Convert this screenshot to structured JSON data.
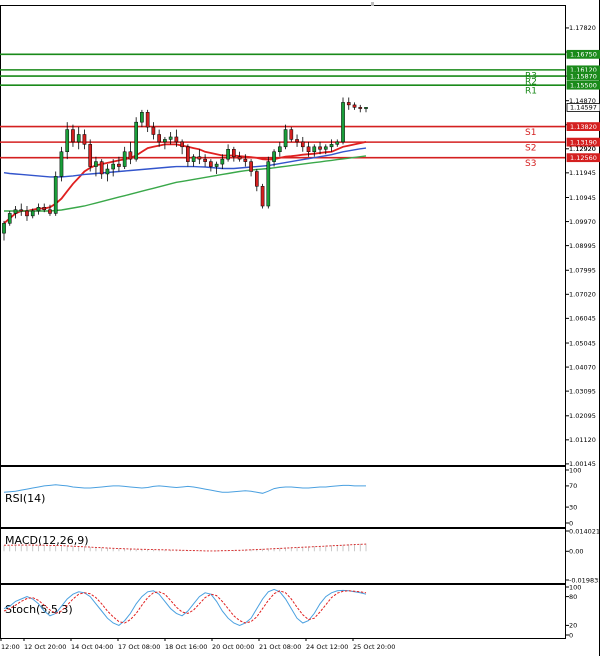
{
  "chart_data": [
    {
      "type": "candlestick",
      "pane": "price",
      "y_ticks": [
        "1.17820",
        "1.16845",
        "1.15870",
        "1.14870",
        "1.13895",
        "1.12920",
        "1.11945",
        "1.10945",
        "1.09970",
        "1.08995",
        "1.07995",
        "1.07020",
        "1.06045",
        "1.05045",
        "1.04070",
        "1.03095",
        "1.02095",
        "1.01120",
        "1.00145"
      ],
      "ylim": [
        1.001,
        1.1875
      ],
      "candles": [
        [
          1.095,
          1.1,
          1.092,
          1.099
        ],
        [
          1.099,
          1.104,
          1.098,
          1.103
        ],
        [
          1.103,
          1.106,
          1.101,
          1.1045
        ],
        [
          1.1045,
          1.107,
          1.102,
          1.104
        ],
        [
          1.104,
          1.106,
          1.1,
          1.102
        ],
        [
          1.102,
          1.105,
          1.101,
          1.104
        ],
        [
          1.104,
          1.107,
          1.1025,
          1.1055
        ],
        [
          1.1055,
          1.107,
          1.1035,
          1.1045
        ],
        [
          1.1045,
          1.1065,
          1.102,
          1.103
        ],
        [
          1.103,
          1.12,
          1.102,
          1.118
        ],
        [
          1.118,
          1.13,
          1.116,
          1.128
        ],
        [
          1.128,
          1.14,
          1.125,
          1.137
        ],
        [
          1.137,
          1.139,
          1.13,
          1.132
        ],
        [
          1.132,
          1.138,
          1.129,
          1.135
        ],
        [
          1.135,
          1.137,
          1.129,
          1.131
        ],
        [
          1.131,
          1.133,
          1.12,
          1.122
        ],
        [
          1.122,
          1.126,
          1.118,
          1.124
        ],
        [
          1.124,
          1.125,
          1.117,
          1.119
        ],
        [
          1.119,
          1.123,
          1.116,
          1.121
        ],
        [
          1.121,
          1.125,
          1.118,
          1.123
        ],
        [
          1.123,
          1.126,
          1.12,
          1.122
        ],
        [
          1.122,
          1.13,
          1.121,
          1.128
        ],
        [
          1.128,
          1.132,
          1.123,
          1.125
        ],
        [
          1.125,
          1.142,
          1.124,
          1.14
        ],
        [
          1.14,
          1.145,
          1.138,
          1.144
        ],
        [
          1.144,
          1.145,
          1.136,
          1.138
        ],
        [
          1.138,
          1.14,
          1.133,
          1.135
        ],
        [
          1.135,
          1.137,
          1.13,
          1.132
        ],
        [
          1.132,
          1.134,
          1.129,
          1.133
        ],
        [
          1.133,
          1.136,
          1.131,
          1.134
        ],
        [
          1.134,
          1.137,
          1.13,
          1.132
        ],
        [
          1.132,
          1.133,
          1.127,
          1.13
        ],
        [
          1.13,
          1.131,
          1.122,
          1.124
        ],
        [
          1.124,
          1.127,
          1.122,
          1.126
        ],
        [
          1.126,
          1.129,
          1.123,
          1.125
        ],
        [
          1.125,
          1.127,
          1.122,
          1.124
        ],
        [
          1.124,
          1.125,
          1.12,
          1.122
        ],
        [
          1.122,
          1.124,
          1.119,
          1.123
        ],
        [
          1.123,
          1.127,
          1.121,
          1.125
        ],
        [
          1.125,
          1.131,
          1.124,
          1.129
        ],
        [
          1.129,
          1.13,
          1.124,
          1.126
        ],
        [
          1.126,
          1.128,
          1.124,
          1.125
        ],
        [
          1.125,
          1.127,
          1.122,
          1.124
        ],
        [
          1.124,
          1.125,
          1.118,
          1.12
        ],
        [
          1.12,
          1.121,
          1.112,
          1.114
        ],
        [
          1.114,
          1.115,
          1.105,
          1.106
        ],
        [
          1.106,
          1.126,
          1.105,
          1.124
        ],
        [
          1.124,
          1.129,
          1.122,
          1.128
        ],
        [
          1.128,
          1.132,
          1.126,
          1.13
        ],
        [
          1.13,
          1.139,
          1.129,
          1.137
        ],
        [
          1.137,
          1.138,
          1.132,
          1.133
        ],
        [
          1.133,
          1.135,
          1.13,
          1.132
        ],
        [
          1.132,
          1.134,
          1.128,
          1.13
        ],
        [
          1.13,
          1.132,
          1.126,
          1.128
        ],
        [
          1.128,
          1.131,
          1.126,
          1.13
        ],
        [
          1.13,
          1.132,
          1.127,
          1.129
        ],
        [
          1.129,
          1.131,
          1.127,
          1.13
        ],
        [
          1.13,
          1.133,
          1.128,
          1.131
        ],
        [
          1.131,
          1.133,
          1.13,
          1.132
        ],
        [
          1.132,
          1.15,
          1.131,
          1.148
        ],
        [
          1.148,
          1.15,
          1.145,
          1.147
        ],
        [
          1.147,
          1.148,
          1.145,
          1.146
        ],
        [
          1.146,
          1.147,
          1.144,
          1.1455
        ],
        [
          1.1455,
          1.146,
          1.144,
          1.146
        ]
      ],
      "moving_averages": [
        {
          "color": "#e02020",
          "values": [
            1.099,
            1.101,
            1.103,
            1.104,
            1.104,
            1.1045,
            1.105,
            1.105,
            1.1055,
            1.107,
            1.109,
            1.112,
            1.115,
            1.1175,
            1.12,
            1.1215,
            1.1225,
            1.123,
            1.1235,
            1.124,
            1.1245,
            1.125,
            1.1255,
            1.1265,
            1.128,
            1.1295,
            1.13,
            1.1305,
            1.131,
            1.131,
            1.131,
            1.1305,
            1.13,
            1.1295,
            1.129,
            1.128,
            1.1275,
            1.127,
            1.1265,
            1.1265,
            1.1265,
            1.1262,
            1.126,
            1.1258,
            1.1255,
            1.125,
            1.1248,
            1.125,
            1.1255,
            1.126,
            1.1262,
            1.1265,
            1.1268,
            1.127,
            1.1272,
            1.1275,
            1.1278,
            1.128,
            1.129,
            1.13,
            1.1305,
            1.131,
            1.1315,
            1.132
          ]
        },
        {
          "color": "#3355cc",
          "values": [
            1.1195,
            1.1192,
            1.119,
            1.1188,
            1.1186,
            1.1184,
            1.1182,
            1.118,
            1.1178,
            1.1178,
            1.1178,
            1.118,
            1.1182,
            1.1185,
            1.1188,
            1.119,
            1.1192,
            1.1194,
            1.1196,
            1.1198,
            1.12,
            1.1202,
            1.1204,
            1.1206,
            1.1208,
            1.121,
            1.1212,
            1.1214,
            1.1216,
            1.1218,
            1.122,
            1.122,
            1.122,
            1.122,
            1.1219,
            1.1218,
            1.1216,
            1.1214,
            1.1212,
            1.1212,
            1.1212,
            1.1214,
            1.1216,
            1.1218,
            1.122,
            1.1222,
            1.1224,
            1.1228,
            1.1232,
            1.1236,
            1.124,
            1.1244,
            1.1248,
            1.1252,
            1.1256,
            1.126,
            1.1264,
            1.1268,
            1.1274,
            1.128,
            1.1284,
            1.1288,
            1.1292,
            1.1295
          ]
        },
        {
          "color": "#3aa84a",
          "values": [
            1.104,
            1.104,
            1.104,
            1.104,
            1.104,
            1.104,
            1.104,
            1.104,
            1.104,
            1.1042,
            1.1044,
            1.1048,
            1.1052,
            1.1056,
            1.106,
            1.1066,
            1.1072,
            1.1078,
            1.1084,
            1.109,
            1.1096,
            1.1102,
            1.1108,
            1.1114,
            1.112,
            1.1126,
            1.1132,
            1.1138,
            1.1144,
            1.115,
            1.1156,
            1.116,
            1.1164,
            1.1168,
            1.1172,
            1.1176,
            1.118,
            1.1184,
            1.1188,
            1.1192,
            1.1196,
            1.12,
            1.1203,
            1.1206,
            1.1208,
            1.121,
            1.1212,
            1.1215,
            1.1218,
            1.1221,
            1.1224,
            1.1227,
            1.123,
            1.1233,
            1.1236,
            1.1239,
            1.1242,
            1.1245,
            1.1248,
            1.1251,
            1.1254,
            1.1257,
            1.126,
            1.1263
          ]
        }
      ],
      "levels": [
        {
          "label": "",
          "value": "1.16750",
          "v": 1.1675,
          "color": "#1a8a1a"
        },
        {
          "label": "R3",
          "value": "1.16120",
          "v": 1.1612,
          "color": "#1a8a1a"
        },
        {
          "label": "R2",
          "value": "1.15870",
          "v": 1.1587,
          "color": "#1a8a1a"
        },
        {
          "label": "R1",
          "value": "1.15500",
          "v": 1.155,
          "color": "#1a8a1a"
        },
        {
          "label": "",
          "value": "1.14597",
          "v": 1.14597,
          "color": "#000000"
        },
        {
          "label": "S1",
          "value": "1.13820",
          "v": 1.1382,
          "color": "#d42020"
        },
        {
          "label": "S2",
          "value": "1.13190",
          "v": 1.1319,
          "color": "#d42020"
        },
        {
          "label": "S3",
          "value": "1.12560",
          "v": 1.1256,
          "color": "#d42020"
        }
      ],
      "level_extra_value": "1.12920"
    },
    {
      "type": "line",
      "pane": "rsi",
      "title": "RSI(14)",
      "y_ticks": [
        "100",
        "70",
        "30",
        "0"
      ],
      "ylim": [
        0,
        100
      ],
      "series": [
        {
          "color": "#4aa0e0",
          "values": [
            58,
            59,
            60,
            62,
            64,
            66,
            68,
            70,
            71,
            72,
            71,
            70,
            68,
            67,
            66,
            66,
            67,
            68,
            69,
            70,
            70,
            69,
            68,
            67,
            66,
            67,
            69,
            70,
            69,
            68,
            67,
            68,
            69,
            68,
            66,
            64,
            62,
            60,
            58,
            58,
            59,
            60,
            61,
            60,
            58,
            56,
            60,
            65,
            67,
            68,
            68,
            67,
            66,
            66,
            67,
            68,
            68,
            69,
            70,
            71,
            71,
            70,
            70,
            70
          ]
        }
      ]
    },
    {
      "type": "bar_line",
      "pane": "macd",
      "title": "MACD(12,26,9)",
      "y_ticks": [
        "0.014021",
        "0.00",
        "-0.019835"
      ],
      "ylim": [
        -0.019835,
        0.014021
      ],
      "histogram": [
        0.004,
        0.004,
        0.004,
        0.0041,
        0.0041,
        0.0042,
        0.0042,
        0.0042,
        0.0041,
        0.004,
        0.0039,
        0.0038,
        0.0036,
        0.0034,
        0.0032,
        0.003,
        0.0028,
        0.0026,
        0.0024,
        0.0022,
        0.002,
        0.0018,
        0.0016,
        0.0015,
        0.0014,
        0.0013,
        0.0012,
        0.0011,
        0.001,
        0.0009,
        0.0008,
        0.0007,
        0.0006,
        0.0005,
        0.0004,
        0.0004,
        0.0004,
        0.0005,
        0.0006,
        0.0007,
        0.0008,
        0.001,
        0.0012,
        0.0014,
        0.0016,
        0.0018,
        0.002,
        0.0022,
        0.0024,
        0.0026,
        0.0028,
        0.003,
        0.0032,
        0.0034,
        0.0036,
        0.0038,
        0.004,
        0.0042,
        0.0044,
        0.0046,
        0.0048,
        0.005,
        0.0052,
        0.0054
      ],
      "signal": {
        "color": "#d42020",
        "values": [
          0.0042,
          0.0042,
          0.0043,
          0.0043,
          0.0043,
          0.0043,
          0.0042,
          0.0042,
          0.0041,
          0.004,
          0.0039,
          0.0037,
          0.0035,
          0.0033,
          0.0031,
          0.0029,
          0.0027,
          0.0025,
          0.0023,
          0.0021,
          0.0019,
          0.0017,
          0.0016,
          0.0015,
          0.0014,
          0.0013,
          0.0012,
          0.0011,
          0.001,
          0.0009,
          0.0008,
          0.0007,
          0.0006,
          0.0005,
          0.0004,
          0.0003,
          0.0003,
          0.0003,
          0.0004,
          0.0005,
          0.0006,
          0.0007,
          0.0008,
          0.001,
          0.0012,
          0.0014,
          0.0016,
          0.0018,
          0.002,
          0.0022,
          0.0024,
          0.0026,
          0.0028,
          0.003,
          0.0032,
          0.0034,
          0.0036,
          0.0038,
          0.004,
          0.0042,
          0.0044,
          0.0046,
          0.0048,
          0.005
        ]
      }
    },
    {
      "type": "line",
      "pane": "stoch",
      "title": "Stoch(5,5,3)",
      "y_ticks": [
        "100",
        "80",
        "20",
        "0"
      ],
      "ylim": [
        0,
        100
      ],
      "series": [
        {
          "color": "#4aa0e0",
          "values": [
            55,
            60,
            70,
            75,
            80,
            75,
            65,
            50,
            40,
            45,
            60,
            75,
            85,
            90,
            88,
            80,
            65,
            50,
            35,
            25,
            20,
            30,
            45,
            65,
            80,
            90,
            92,
            85,
            70,
            55,
            45,
            40,
            50,
            65,
            80,
            88,
            85,
            70,
            50,
            35,
            25,
            20,
            25,
            35,
            55,
            75,
            90,
            95,
            90,
            75,
            55,
            35,
            25,
            30,
            45,
            65,
            80,
            88,
            92,
            93,
            92,
            90,
            88,
            85
          ]
        },
        {
          "color": "#e02020",
          "values": [
            50,
            55,
            62,
            70,
            76,
            78,
            72,
            62,
            52,
            45,
            50,
            62,
            75,
            85,
            88,
            86,
            78,
            65,
            50,
            38,
            28,
            25,
            32,
            45,
            62,
            78,
            88,
            90,
            85,
            72,
            58,
            48,
            45,
            52,
            65,
            78,
            85,
            82,
            70,
            55,
            40,
            30,
            25,
            28,
            38,
            55,
            72,
            86,
            92,
            88,
            75,
            58,
            42,
            32,
            35,
            48,
            63,
            78,
            87,
            91,
            92,
            91,
            90,
            88
          ]
        }
      ]
    }
  ],
  "x_labels": [
    "12:00",
    "12 Oct 20:00",
    "14 Oct 04:00",
    "17 Oct 08:00",
    "18 Oct 16:00",
    "20 Oct 00:00",
    "21 Oct 08:00",
    "24 Oct 12:00",
    "25 Oct 20:00"
  ],
  "colors": {
    "bg": "#ffffff",
    "axis": "#000000",
    "bull": "#1a9e3a",
    "bear": "#d42020",
    "grid": "#cccccc"
  }
}
